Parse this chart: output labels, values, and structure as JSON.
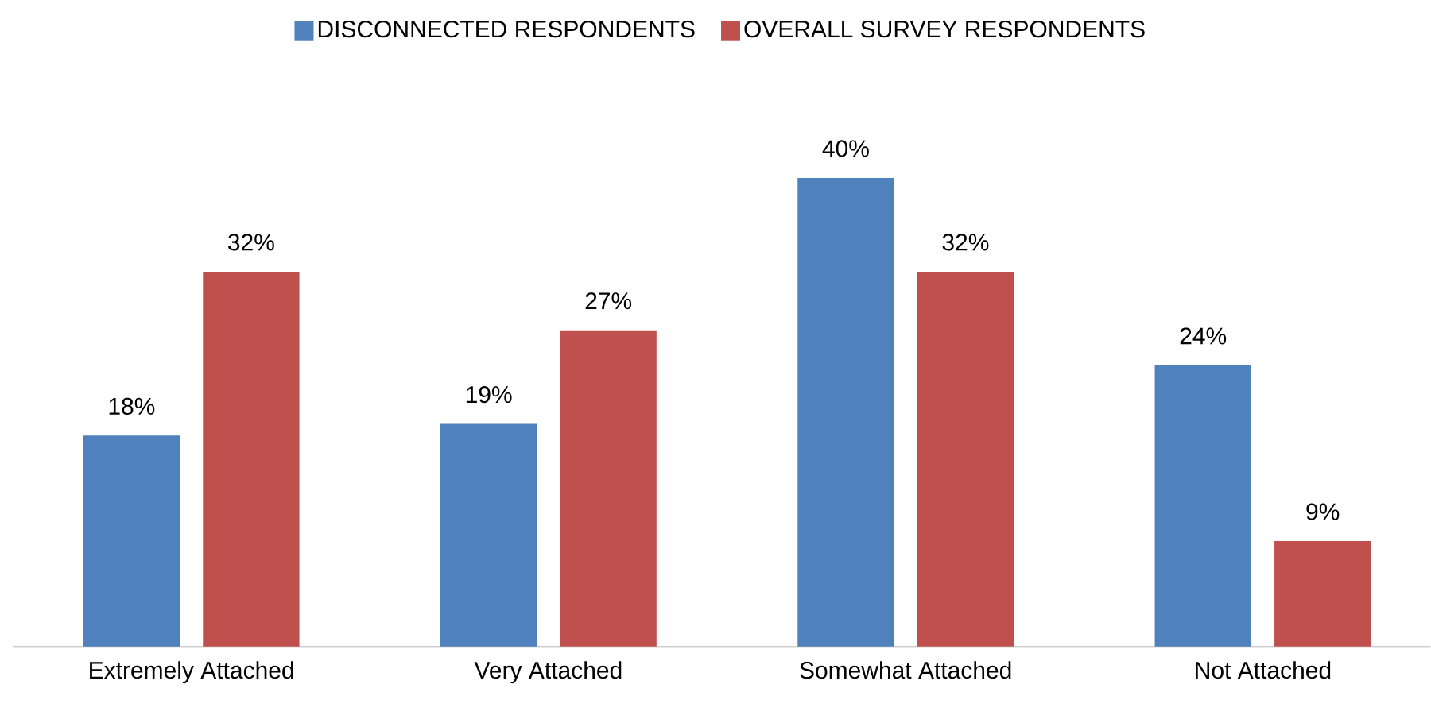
{
  "chart_data": {
    "type": "bar",
    "categories": [
      "Extremely Attached",
      "Very Attached",
      "Somewhat Attached",
      "Not Attached"
    ],
    "series": [
      {
        "name": "DISCONNECTED RESPONDENTS",
        "color": "#4f81bd",
        "values": [
          18,
          19,
          40,
          24
        ],
        "value_labels": [
          "18%",
          "19%",
          "40%",
          "24%"
        ]
      },
      {
        "name": "OVERALL SURVEY RESPONDENTS",
        "color": "#c0504d",
        "values": [
          32,
          27,
          32,
          9
        ],
        "value_labels": [
          "32%",
          "27%",
          "32%",
          "9%"
        ]
      }
    ],
    "legend": "top"
  }
}
